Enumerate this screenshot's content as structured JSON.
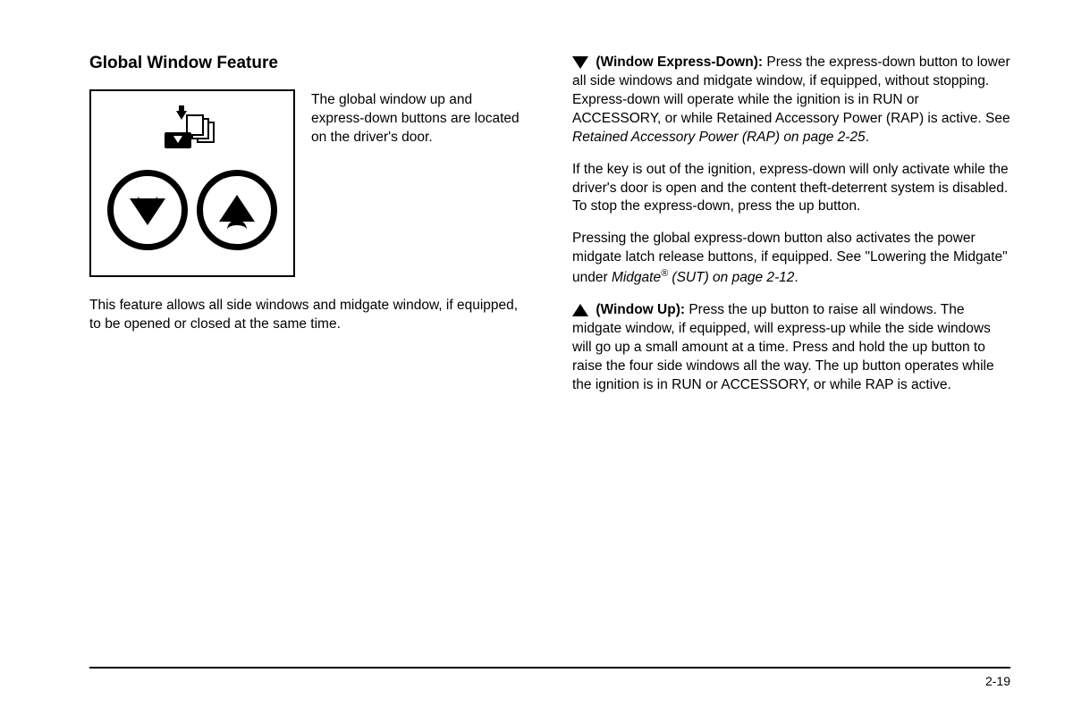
{
  "heading": "Global Window Feature",
  "sideCaption": "The global window up and express-down buttons are located on the driver's door.",
  "leftPara": "This feature allows all side windows and midgate window, if equipped, to be opened or closed at the same time.",
  "r1_label": "(Window Express-Down):",
  "r1_text1": " Press the express-down button to lower all side windows and midgate window, if equipped, without stopping. Express-down will operate while the ignition is in RUN or ACCESSORY, or while Retained Accessory Power (RAP) is active. See ",
  "r1_ital": "Retained Accessory Power (RAP) on page 2-25",
  "r1_period": ".",
  "r2": "If the key is out of the ignition, express-down will only activate while the driver's door is open and the content theft-deterrent system is disabled. To stop the express-down, press the up button.",
  "r3_a": "Pressing the global express-down button also activates the power midgate latch release buttons, if equipped. See \"Lowering the Midgate\" under ",
  "r3_ital": "Midgate",
  "r3_sup": "®",
  "r3_ital2": " (SUT) on page 2-12",
  "r3_period": ".",
  "r4_label": "(Window Up):",
  "r4_text": " Press the up button to raise all windows. The midgate window, if equipped, will express-up while the side windows will go up a small amount at a time. Press and hold the up button to raise the four side windows all the way. The up button operates while the ignition is in RUN or ACCESSORY, or while RAP is active.",
  "pageNumber": "2-19"
}
